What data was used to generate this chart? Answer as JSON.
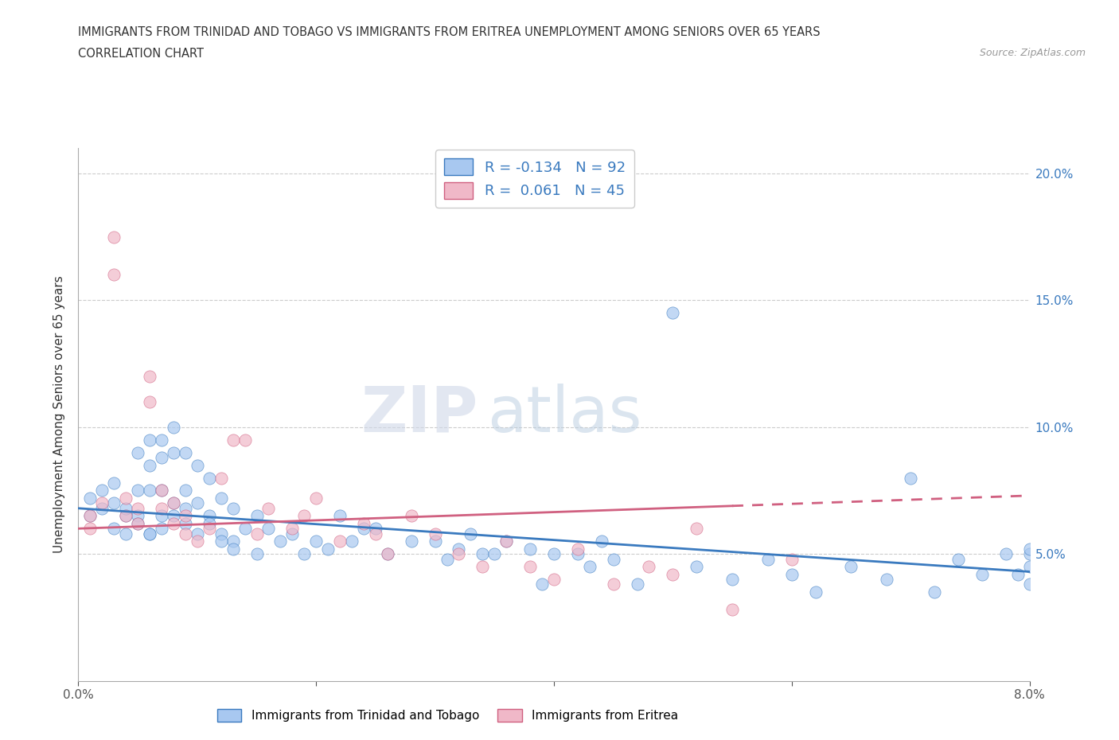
{
  "title_line1": "IMMIGRANTS FROM TRINIDAD AND TOBAGO VS IMMIGRANTS FROM ERITREA UNEMPLOYMENT AMONG SENIORS OVER 65 YEARS",
  "title_line2": "CORRELATION CHART",
  "source_text": "Source: ZipAtlas.com",
  "ylabel": "Unemployment Among Seniors over 65 years",
  "xlim": [
    0.0,
    0.08
  ],
  "ylim": [
    0.0,
    0.21
  ],
  "xticks": [
    0.0,
    0.02,
    0.04,
    0.06,
    0.08
  ],
  "xtick_labels": [
    "0.0%",
    "",
    "",
    "",
    "8.0%"
  ],
  "yticks": [
    0.05,
    0.1,
    0.15,
    0.2
  ],
  "ytick_labels": [
    "5.0%",
    "10.0%",
    "15.0%",
    "20.0%"
  ],
  "color_blue": "#a8c8f0",
  "color_pink": "#f0b8c8",
  "color_blue_line": "#3a7abf",
  "color_pink_line": "#d06080",
  "legend_r1": "-0.134",
  "legend_n1": "92",
  "legend_r2": "0.061",
  "legend_n2": "45",
  "legend_label1": "Immigrants from Trinidad and Tobago",
  "legend_label2": "Immigrants from Eritrea",
  "watermark_zip": "ZIP",
  "watermark_atlas": "atlas",
  "blue_line_x0": 0.0,
  "blue_line_y0": 0.068,
  "blue_line_x1": 0.08,
  "blue_line_y1": 0.043,
  "pink_line_x0": 0.0,
  "pink_line_y0": 0.06,
  "pink_line_solid_x1": 0.055,
  "pink_line_x1": 0.08,
  "pink_line_y1": 0.073,
  "grid_color": "#cccccc",
  "bg_color": "#ffffff",
  "blue_scatter_x": [
    0.001,
    0.001,
    0.002,
    0.002,
    0.003,
    0.003,
    0.003,
    0.004,
    0.004,
    0.004,
    0.005,
    0.005,
    0.005,
    0.006,
    0.006,
    0.006,
    0.006,
    0.007,
    0.007,
    0.007,
    0.007,
    0.008,
    0.008,
    0.008,
    0.009,
    0.009,
    0.009,
    0.01,
    0.01,
    0.011,
    0.011,
    0.012,
    0.012,
    0.013,
    0.013,
    0.014,
    0.015,
    0.015,
    0.016,
    0.017,
    0.018,
    0.019,
    0.02,
    0.021,
    0.022,
    0.023,
    0.024,
    0.025,
    0.026,
    0.028,
    0.03,
    0.031,
    0.032,
    0.033,
    0.034,
    0.035,
    0.036,
    0.038,
    0.039,
    0.04,
    0.042,
    0.043,
    0.044,
    0.045,
    0.047,
    0.05,
    0.052,
    0.055,
    0.058,
    0.06,
    0.062,
    0.065,
    0.068,
    0.07,
    0.072,
    0.074,
    0.076,
    0.078,
    0.079,
    0.08,
    0.08,
    0.08,
    0.08,
    0.005,
    0.006,
    0.007,
    0.008,
    0.009,
    0.01,
    0.011,
    0.012,
    0.013
  ],
  "blue_scatter_y": [
    0.065,
    0.072,
    0.068,
    0.075,
    0.06,
    0.07,
    0.078,
    0.065,
    0.058,
    0.068,
    0.09,
    0.075,
    0.065,
    0.095,
    0.085,
    0.075,
    0.058,
    0.095,
    0.088,
    0.075,
    0.065,
    0.1,
    0.09,
    0.07,
    0.09,
    0.075,
    0.062,
    0.085,
    0.07,
    0.08,
    0.065,
    0.072,
    0.058,
    0.068,
    0.055,
    0.06,
    0.065,
    0.05,
    0.06,
    0.055,
    0.058,
    0.05,
    0.055,
    0.052,
    0.065,
    0.055,
    0.06,
    0.06,
    0.05,
    0.055,
    0.055,
    0.048,
    0.052,
    0.058,
    0.05,
    0.05,
    0.055,
    0.052,
    0.038,
    0.05,
    0.05,
    0.045,
    0.055,
    0.048,
    0.038,
    0.145,
    0.045,
    0.04,
    0.048,
    0.042,
    0.035,
    0.045,
    0.04,
    0.08,
    0.035,
    0.048,
    0.042,
    0.05,
    0.042,
    0.05,
    0.045,
    0.038,
    0.052,
    0.062,
    0.058,
    0.06,
    0.065,
    0.068,
    0.058,
    0.062,
    0.055,
    0.052
  ],
  "pink_scatter_x": [
    0.001,
    0.001,
    0.002,
    0.003,
    0.003,
    0.004,
    0.004,
    0.005,
    0.005,
    0.006,
    0.006,
    0.007,
    0.007,
    0.008,
    0.008,
    0.009,
    0.009,
    0.01,
    0.011,
    0.012,
    0.013,
    0.014,
    0.015,
    0.016,
    0.018,
    0.019,
    0.02,
    0.022,
    0.024,
    0.025,
    0.026,
    0.028,
    0.03,
    0.032,
    0.034,
    0.036,
    0.038,
    0.04,
    0.042,
    0.045,
    0.048,
    0.05,
    0.052,
    0.055,
    0.06
  ],
  "pink_scatter_y": [
    0.06,
    0.065,
    0.07,
    0.16,
    0.175,
    0.065,
    0.072,
    0.062,
    0.068,
    0.11,
    0.12,
    0.068,
    0.075,
    0.062,
    0.07,
    0.058,
    0.065,
    0.055,
    0.06,
    0.08,
    0.095,
    0.095,
    0.058,
    0.068,
    0.06,
    0.065,
    0.072,
    0.055,
    0.062,
    0.058,
    0.05,
    0.065,
    0.058,
    0.05,
    0.045,
    0.055,
    0.045,
    0.04,
    0.052,
    0.038,
    0.045,
    0.042,
    0.06,
    0.028,
    0.048
  ]
}
